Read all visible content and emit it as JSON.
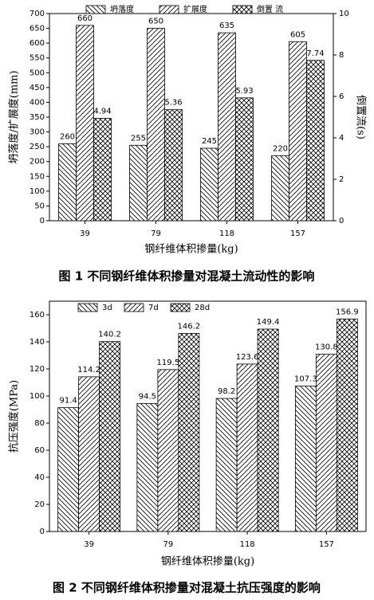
{
  "chart_data": [
    {
      "type": "bar",
      "categories": [
        "39",
        "79",
        "118",
        "157"
      ],
      "series": [
        {
          "name": "坍落度",
          "color": "#000000",
          "hatch": "backslash",
          "values": [
            260,
            255,
            245,
            220
          ]
        },
        {
          "name": "扩展度",
          "color": "#000000",
          "hatch": "slash",
          "values": [
            660,
            650,
            635,
            605
          ]
        },
        {
          "name": "倒置 流",
          "color": "#000000",
          "hatch": "cross",
          "axis": "y2",
          "values": [
            4.94,
            5.36,
            5.93,
            7.74
          ]
        }
      ],
      "ylim": [
        0,
        700
      ],
      "yticks": [
        0,
        50,
        100,
        150,
        200,
        250,
        300,
        350,
        400,
        450,
        500,
        550,
        600,
        650,
        700
      ],
      "y2lim": [
        0,
        10
      ],
      "y2ticks": [
        0,
        2,
        4,
        6,
        8,
        10
      ],
      "xlabel": "钢纤维体积掺量(kg)",
      "ylabel": "坍落度/扩展度(mm)",
      "y2label": "倒置流(s)",
      "caption": "图 1   不同钢纤维体积掺量对混凝土流动性的影响"
    },
    {
      "type": "bar",
      "categories": [
        "39",
        "79",
        "118",
        "157"
      ],
      "series": [
        {
          "name": "3d",
          "color": "#000000",
          "hatch": "backslash",
          "values": [
            91.4,
            94.5,
            98.2,
            107.3
          ]
        },
        {
          "name": "7d",
          "color": "#000000",
          "hatch": "slash",
          "values": [
            114.2,
            119.5,
            123.6,
            130.8
          ]
        },
        {
          "name": "28d",
          "color": "#000000",
          "hatch": "cross",
          "values": [
            140.2,
            146.2,
            149.4,
            156.9
          ]
        }
      ],
      "ylim": [
        0,
        170
      ],
      "yticks": [
        0,
        20,
        40,
        60,
        80,
        100,
        120,
        140,
        160
      ],
      "xlabel": "钢纤维体积掺量(kg)",
      "ylabel": "抗压强度(MPa)",
      "caption": "图 2   不同钢纤维体积掺量对混凝土抗压强度的影响"
    }
  ]
}
